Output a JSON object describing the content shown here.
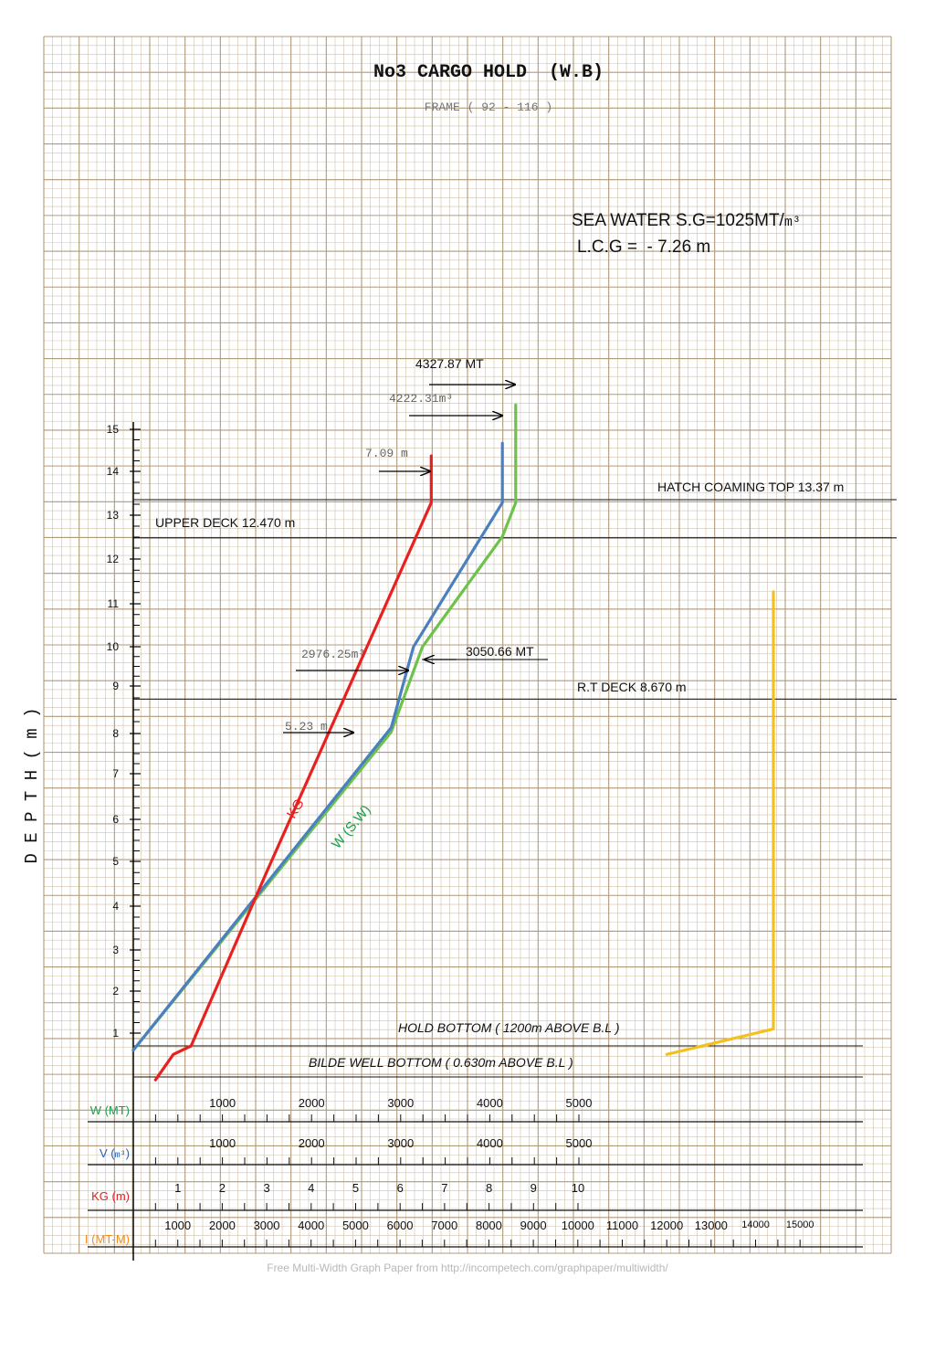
{
  "chart_data": {
    "type": "line",
    "title": "No3 CARGO HOLD  (W.B)",
    "subtitle": "FRAME ( 92 - 116 )",
    "ylabel": "D E P T H ( m )",
    "ylim": [
      0,
      15
    ],
    "y_ticks": [
      "1",
      "2",
      "3",
      "4",
      "5",
      "6",
      "7",
      "8",
      "9",
      "10",
      "11",
      "12",
      "13",
      "14",
      "15"
    ],
    "info_lines": {
      "sg_main": "SEA WATER S.G=1025MT/",
      "sg_unit": "m³",
      "lcg": "L.C.G =  - 7.26 m"
    },
    "reference_lines": [
      {
        "label": "HATCH COAMING TOP  13.37 m",
        "depth": 13.37
      },
      {
        "label": "UPPER DECK  12.470 m",
        "depth": 12.47
      },
      {
        "label": "R.T  DECK  8.670 m",
        "depth": 8.67
      },
      {
        "label": "HOLD BOTTOM  ( 1200m ABOVE B.L )",
        "depth": 0.5
      },
      {
        "label": "BILDE WELL BOTTOM    ( 0.630m   ABOVE B.L )",
        "depth": -0.1
      }
    ],
    "scales": [
      {
        "key": "W",
        "label": "W (MT)",
        "label_color": "#1aa04a",
        "ticks": [
          "1000",
          "2000",
          "3000",
          "4000",
          "5000"
        ],
        "values": [
          1000,
          2000,
          3000,
          4000,
          5000
        ]
      },
      {
        "key": "V",
        "label": "V (",
        "label_unit": "m³",
        "label_close": ")",
        "label_color": "#2a5fb0",
        "ticks": [
          "1000",
          "2000",
          "3000",
          "4000",
          "5000"
        ],
        "values": [
          1000,
          2000,
          3000,
          4000,
          5000
        ]
      },
      {
        "key": "KG",
        "label": "KG (m)",
        "label_color": "#e02020",
        "ticks": [
          "1",
          "2",
          "3",
          "4",
          "5",
          "6",
          "7",
          "8",
          "9",
          "10"
        ],
        "values": [
          1,
          2,
          3,
          4,
          5,
          6,
          7,
          8,
          9,
          10
        ]
      },
      {
        "key": "I",
        "label": "I (MT-M)",
        "label_color": "#f08a1c",
        "ticks": [
          "1000",
          "2000",
          "3000",
          "4000",
          "5000",
          "6000",
          "7000",
          "8000",
          "9000",
          "10000",
          "11000",
          "12000",
          "13000",
          "14000",
          "15000"
        ],
        "values": [
          1000,
          2000,
          3000,
          4000,
          5000,
          6000,
          7000,
          8000,
          9000,
          10000,
          11000,
          12000,
          13000,
          14000,
          15000
        ]
      }
    ],
    "series": [
      {
        "key": "W",
        "name": "W (S.W)",
        "color": "#6cc24a",
        "points": [
          [
            0,
            0.4
          ],
          [
            5.8,
            7.9
          ],
          [
            6.5,
            9.9
          ],
          [
            8.3,
            12.5
          ],
          [
            8.6,
            13.3
          ],
          [
            8.6,
            15.6
          ]
        ]
      },
      {
        "key": "V",
        "color": "#4a7fc0",
        "points": [
          [
            0,
            0.4
          ],
          [
            5.8,
            8.0
          ],
          [
            6.3,
            9.9
          ],
          [
            8.3,
            13.3
          ],
          [
            8.3,
            14.7
          ]
        ]
      },
      {
        "key": "KG",
        "name": "KG",
        "color": "#e82020",
        "points": [
          [
            0.5,
            -0.3
          ],
          [
            0.9,
            0.3
          ],
          [
            1.3,
            0.5
          ],
          [
            3.0,
            4.6
          ],
          [
            6.7,
            13.3
          ],
          [
            6.7,
            14.4
          ]
        ]
      },
      {
        "key": "I",
        "color": "#f4c020",
        "points": [
          [
            12000,
            0.3
          ],
          [
            14400,
            0.9
          ],
          [
            14400,
            11.2
          ]
        ]
      }
    ],
    "annotations": [
      {
        "text": "4327.87 MT",
        "style": "sans"
      },
      {
        "text": "4222.31m³",
        "style": "mono"
      },
      {
        "text": "7.09 m",
        "style": "mono"
      },
      {
        "text": "3050.66 MT",
        "style": "sans"
      },
      {
        "text": "2976.25m³",
        "style": "mono"
      },
      {
        "text": "5.23 m",
        "style": "mono"
      }
    ],
    "footer": "Free Multi-Width Graph Paper from http://incompetech.com/graphpaper/multiwidth/",
    "grid": true
  }
}
